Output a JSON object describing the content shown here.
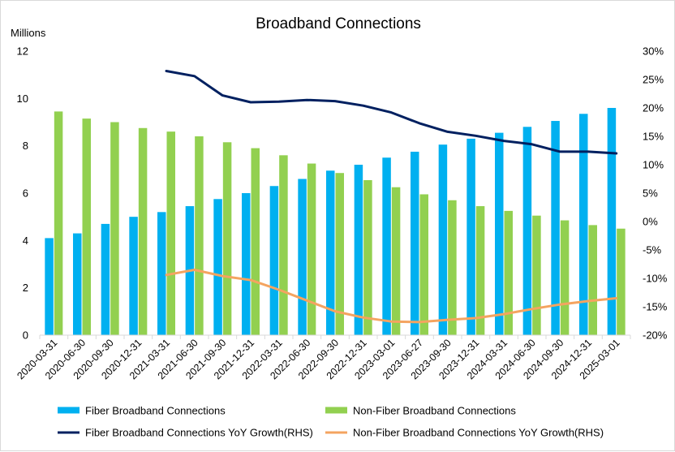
{
  "chart_data": {
    "type": "bar",
    "title": "Broadband Connections",
    "ylabel_unit": "Millions",
    "ylim": [
      0,
      12
    ],
    "yticks": [
      "0",
      "2",
      "4",
      "6",
      "8",
      "10",
      "12"
    ],
    "y2lim": [
      -20,
      30
    ],
    "y2ticks": [
      "-20%",
      "-15%",
      "-10%",
      "-5%",
      "0%",
      "5%",
      "10%",
      "15%",
      "20%",
      "25%",
      "30%"
    ],
    "categories": [
      "2020-03-31",
      "2020-06-30",
      "2020-09-30",
      "2020-12-31",
      "2021-03-31",
      "2021-06-30",
      "2021-09-30",
      "2021-12-31",
      "2022-03-31",
      "2022-06-30",
      "2022-09-30",
      "2022-12-31",
      "2023-03-01",
      "2023-06-27",
      "2023-09-30",
      "2023-12-31",
      "2024-03-31",
      "2024-06-30",
      "2024-09-30",
      "2024-12-31",
      "2025-03-01"
    ],
    "series": [
      {
        "name": "Fiber Broadband Connections",
        "type": "bar",
        "axis": "left",
        "color": "#00b0f0",
        "values": [
          4.1,
          4.3,
          4.7,
          5.0,
          5.2,
          5.45,
          5.75,
          6.0,
          6.3,
          6.6,
          6.95,
          7.2,
          7.5,
          7.75,
          8.05,
          8.3,
          8.55,
          8.8,
          9.05,
          9.35,
          9.6
        ]
      },
      {
        "name": "Non-Fiber Broadband Connections",
        "type": "bar",
        "axis": "left",
        "color": "#92d050",
        "values": [
          9.45,
          9.15,
          9.0,
          8.75,
          8.6,
          8.4,
          8.15,
          7.9,
          7.6,
          7.25,
          6.85,
          6.55,
          6.25,
          5.95,
          5.7,
          5.45,
          5.25,
          5.05,
          4.85,
          4.65,
          4.5
        ]
      },
      {
        "name": "Fiber Broadband Connections YoY Growth(RHS)",
        "type": "line",
        "axis": "right",
        "color": "#002060",
        "values": [
          null,
          null,
          null,
          null,
          26.5,
          25.6,
          22.2,
          21.0,
          21.1,
          21.4,
          21.2,
          20.4,
          19.2,
          17.3,
          15.8,
          15.1,
          14.2,
          13.6,
          12.3,
          12.3,
          12.0
        ]
      },
      {
        "name": "Non-Fiber Broadband Connections YoY Growth(RHS)",
        "type": "line",
        "axis": "right",
        "color": "#f4a460",
        "values": [
          null,
          null,
          null,
          null,
          -9.4,
          -8.5,
          -9.6,
          -10.3,
          -12.0,
          -13.9,
          -15.8,
          -16.9,
          -17.6,
          -17.7,
          -17.3,
          -17.0,
          -16.3,
          -15.4,
          -14.6,
          -14.0,
          -13.5
        ]
      }
    ],
    "legend_position": "bottom",
    "grid": false
  }
}
